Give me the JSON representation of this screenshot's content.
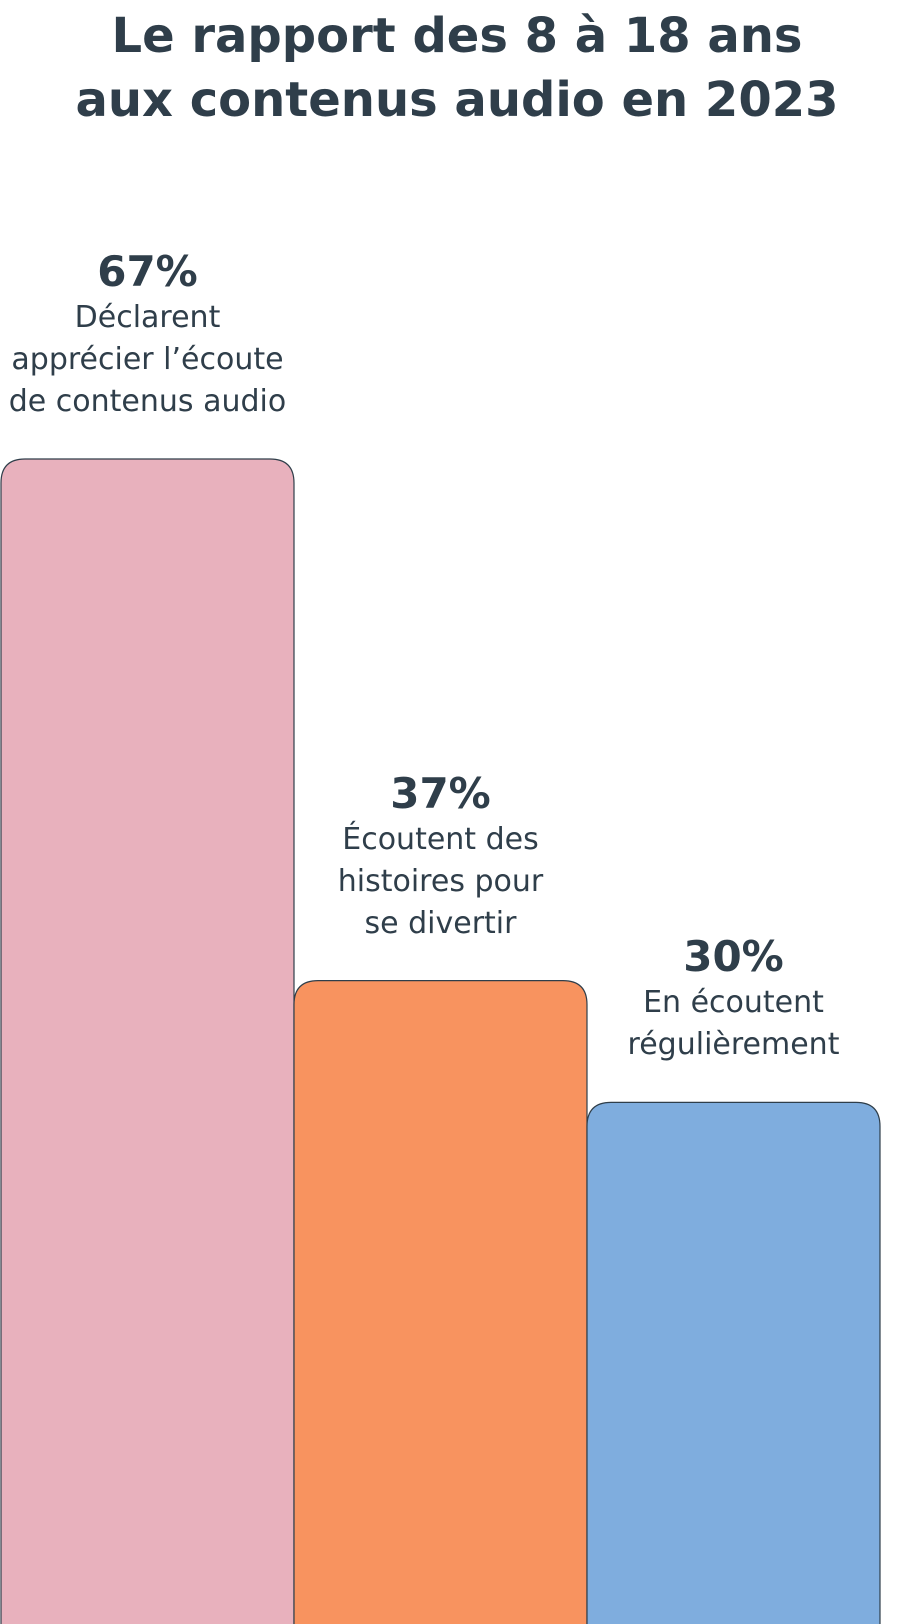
{
  "chart_data": {
    "type": "bar",
    "title": "Le rapport des 8 à 18 ans aux contenus audio en 2023",
    "categories": [
      "Déclarent apprécier l’écoute de contenus audio",
      "Écoutent des histoires pour se divertir",
      "En écoutent régulièrement"
    ],
    "values": [
      67,
      37,
      30
    ],
    "value_labels": [
      "67%",
      "37%",
      "30%"
    ],
    "colors": [
      "#e8b1bd",
      "#f8935f",
      "#7fadde"
    ]
  }
}
